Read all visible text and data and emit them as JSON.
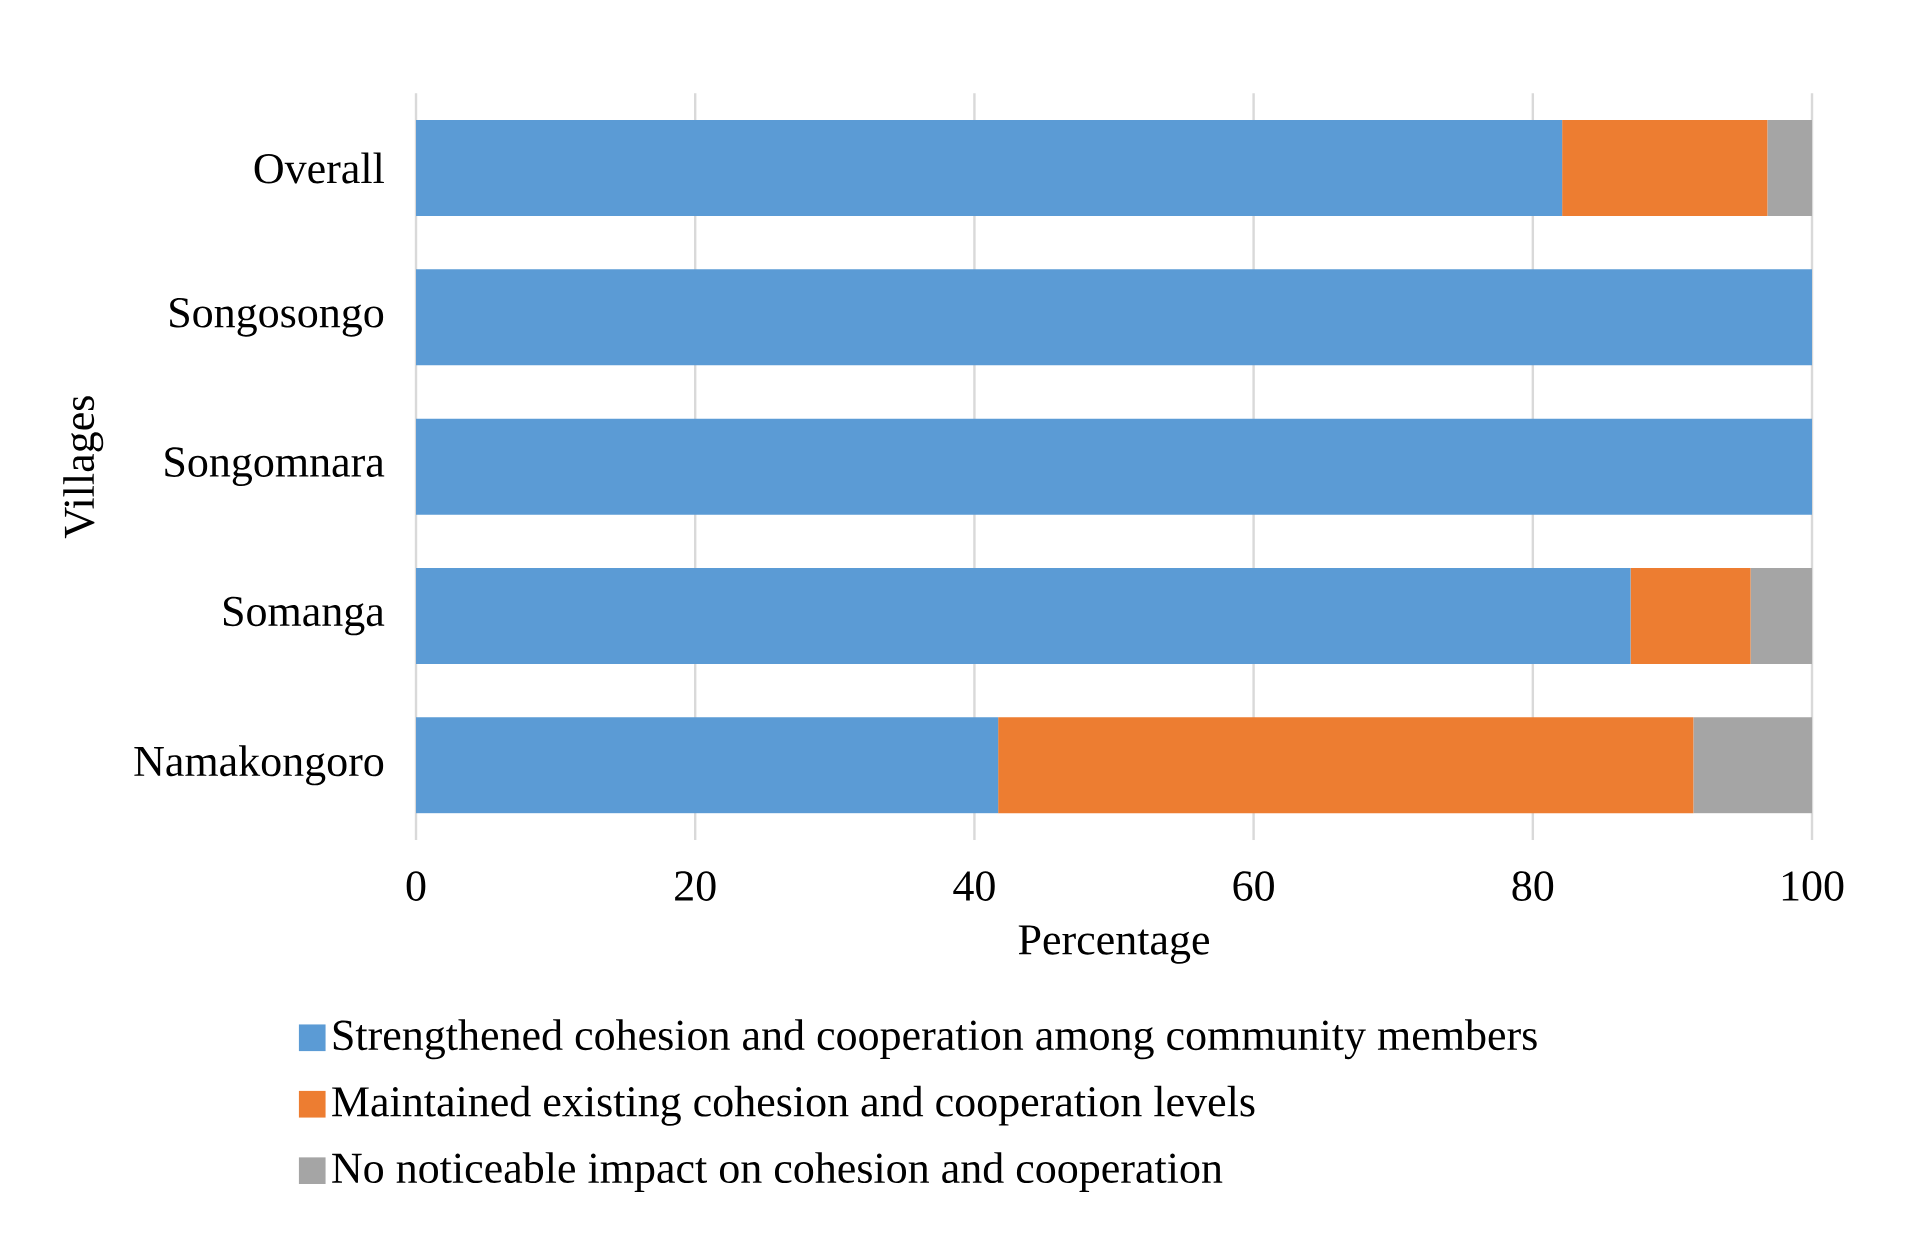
{
  "chart_data": {
    "type": "bar",
    "orientation": "horizontal",
    "stacked": true,
    "categories": [
      "Overall",
      "Songosongo",
      "Songomnara",
      "Somanga",
      "Namakongoro"
    ],
    "series": [
      {
        "name": "Strengthened cohesion and cooperation among community members",
        "color": "#5b9bd5",
        "values": [
          82.1,
          100,
          100,
          87.0,
          41.7
        ]
      },
      {
        "name": "Maintained existing cohesion and cooperation levels",
        "color": "#ed7d31",
        "values": [
          14.7,
          0,
          0,
          8.6,
          49.8
        ]
      },
      {
        "name": "No noticeable impact on cohesion and cooperation",
        "color": "#a5a5a5",
        "values": [
          3.2,
          0,
          0,
          4.4,
          8.5
        ]
      }
    ],
    "xlabel": "Percentage",
    "ylabel": "Villages",
    "xlim": [
      0,
      100
    ],
    "xticks": [
      0,
      20,
      40,
      60,
      80,
      100
    ],
    "grid": "x",
    "legend": "bottom"
  }
}
